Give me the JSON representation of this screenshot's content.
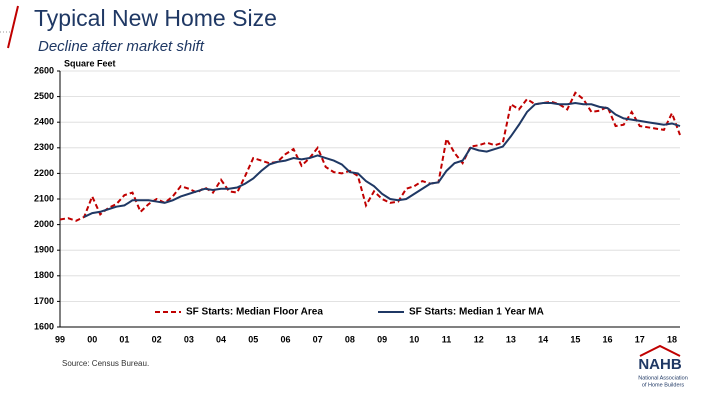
{
  "chart_data": {
    "type": "line",
    "title": "Typical New Home Size",
    "subtitle": "Decline after market shift",
    "y_label": "Square Feet",
    "source": "Source: Census Bureau.",
    "categories": [
      "99",
      null,
      null,
      null,
      "00",
      null,
      null,
      null,
      "01",
      null,
      null,
      null,
      "02",
      null,
      null,
      null,
      "03",
      null,
      null,
      null,
      "04",
      null,
      null,
      null,
      "05",
      null,
      null,
      null,
      "06",
      null,
      null,
      null,
      "07",
      null,
      null,
      null,
      "08",
      null,
      null,
      null,
      "09",
      null,
      null,
      null,
      "10",
      null,
      null,
      null,
      "11",
      null,
      null,
      null,
      "12",
      null,
      null,
      null,
      "13",
      null,
      null,
      null,
      "14",
      null,
      null,
      null,
      "15",
      null,
      null,
      null,
      "16",
      null,
      null,
      null,
      "17",
      null,
      null,
      null,
      "18",
      null
    ],
    "series": [
      {
        "name": "SF Starts: Median Floor Area",
        "color": "#c00000",
        "dashed": true,
        "values": [
          2020,
          2025,
          2015,
          2030,
          2110,
          2040,
          2065,
          2080,
          2115,
          2125,
          2050,
          2080,
          2100,
          2085,
          2110,
          2150,
          2140,
          2125,
          2145,
          2125,
          2175,
          2130,
          2125,
          2190,
          2260,
          2250,
          2240,
          2245,
          2275,
          2295,
          2230,
          2260,
          2300,
          2225,
          2205,
          2200,
          2210,
          2190,
          2075,
          2130,
          2100,
          2085,
          2090,
          2140,
          2150,
          2170,
          2160,
          2165,
          2335,
          2280,
          2240,
          2305,
          2310,
          2320,
          2310,
          2320,
          2470,
          2450,
          2490,
          2470,
          2475,
          2480,
          2470,
          2450,
          2515,
          2490,
          2440,
          2445,
          2460,
          2385,
          2390,
          2440,
          2385,
          2380,
          2375,
          2370,
          2435,
          2350
        ]
      },
      {
        "name": "SF Starts: Median 1 Year MA",
        "color": "#1f3864",
        "dashed": false,
        "values": [
          null,
          null,
          null,
          2030,
          2045,
          2050,
          2060,
          2070,
          2075,
          2095,
          2095,
          2095,
          2090,
          2085,
          2095,
          2110,
          2120,
          2130,
          2140,
          2135,
          2140,
          2140,
          2145,
          2160,
          2180,
          2210,
          2235,
          2245,
          2250,
          2260,
          2255,
          2260,
          2270,
          2260,
          2250,
          2235,
          2205,
          2200,
          2170,
          2150,
          2120,
          2100,
          2095,
          2100,
          2120,
          2140,
          2160,
          2165,
          2210,
          2240,
          2250,
          2300,
          2290,
          2285,
          2295,
          2305,
          2345,
          2390,
          2440,
          2470,
          2475,
          2475,
          2470,
          2470,
          2475,
          2470,
          2470,
          2460,
          2455,
          2430,
          2415,
          2410,
          2405,
          2400,
          2395,
          2390,
          2395,
          2385
        ]
      }
    ],
    "ylim": [
      1600,
      2600
    ],
    "yticks": [
      1600,
      1700,
      1800,
      1900,
      2000,
      2100,
      2200,
      2300,
      2400,
      2500,
      2600
    ],
    "grid": true
  },
  "logo": {
    "text": "NAHB",
    "lines": [
      "National Association",
      "of Home Builders"
    ]
  }
}
